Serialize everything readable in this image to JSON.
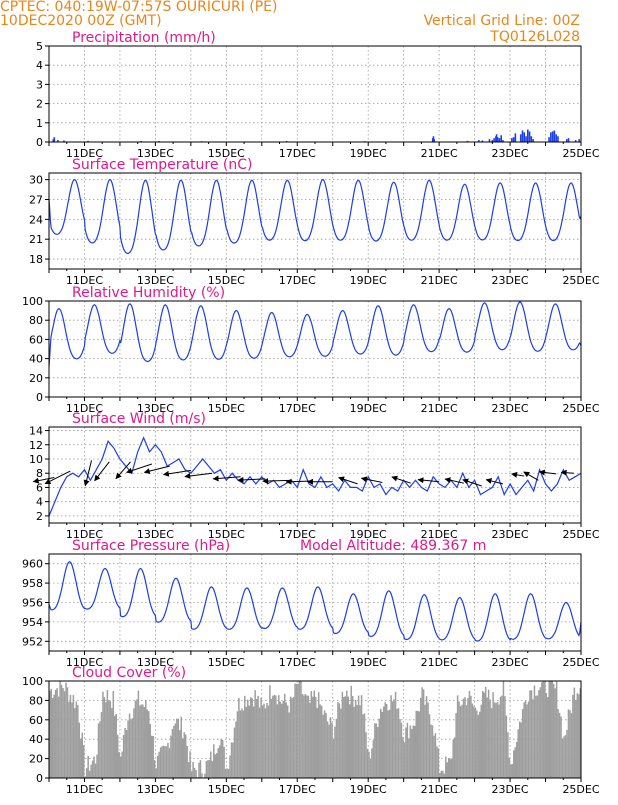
{
  "header": {
    "station": "CPTEC:   040:19W-07:57S   OURICURI (PE)",
    "date": "10DEC2020 00Z (GMT)",
    "grid_note": "Vertical Grid Line: 00Z",
    "model_code": "TQ0126L028"
  },
  "colors": {
    "header": "#e8861a",
    "titles": "#e0198c",
    "series": "#1c3fe6",
    "cloud": "#9e9e9e",
    "arrow": "#000000"
  },
  "x_axis": {
    "start_day": 10,
    "end_day": 25,
    "tick_labels": [
      "11DEC",
      "13DEC",
      "15DEC",
      "17DEC",
      "19DEC",
      "21DEC",
      "23DEC",
      "25DEC"
    ],
    "tick_days": [
      11,
      13,
      15,
      17,
      19,
      21,
      23,
      25
    ],
    "grid_days": [
      11,
      12,
      13,
      14,
      15,
      16,
      17,
      18,
      19,
      20,
      21,
      22,
      23,
      24
    ]
  },
  "chart_data": [
    {
      "type": "bar",
      "title": "Precipitation (mm/h)",
      "ylim": [
        0,
        5
      ],
      "yticks": [
        0,
        1,
        2,
        3,
        4,
        5
      ],
      "x": [
        10.12,
        10.15,
        10.25,
        10.42,
        11.1,
        12.6,
        13.1,
        14.3,
        16.7,
        18.9,
        20.82,
        20.84,
        20.86,
        21.8,
        22.12,
        22.22,
        22.42,
        22.5,
        22.55,
        22.6,
        22.62,
        22.65,
        22.7,
        22.75,
        22.8,
        23.05,
        23.1,
        23.15,
        23.3,
        23.35,
        23.4,
        23.45,
        23.5,
        23.55,
        23.6,
        23.65,
        24.1,
        24.15,
        24.2,
        24.25,
        24.3,
        24.35,
        24.6,
        24.65,
        24.85,
        24.95
      ],
      "values": [
        0.15,
        0.25,
        0.1,
        0.08,
        0.06,
        0.05,
        0.05,
        0.04,
        0.05,
        0.04,
        0.2,
        0.3,
        0.15,
        0.06,
        0.1,
        0.08,
        0.15,
        0.1,
        0.2,
        0.3,
        0.4,
        0.25,
        0.2,
        0.35,
        0.1,
        0.2,
        0.25,
        0.45,
        0.4,
        0.6,
        0.5,
        0.3,
        0.65,
        0.55,
        0.3,
        0.15,
        0.25,
        0.5,
        0.55,
        0.6,
        0.4,
        0.3,
        0.15,
        0.2,
        0.1,
        0.15
      ]
    },
    {
      "type": "line",
      "title": "Surface Temperature (nC)",
      "ylim": [
        16.5,
        31
      ],
      "yticks": [
        18,
        21,
        24,
        27,
        30
      ],
      "daily_max": [
        30,
        30,
        29.9,
        29.9,
        29.9,
        29.9,
        29.9,
        30,
        29.9,
        29.6,
        29.9,
        29.3,
        29.5,
        29.5,
        29.5
      ],
      "daily_min": [
        20.5,
        19,
        17.2,
        17.8,
        18.5,
        19,
        19.5,
        19.4,
        19.5,
        19.4,
        19.5,
        19.6,
        19.6,
        19.5,
        19.5
      ],
      "start_value": 27,
      "end_value": 24.5
    },
    {
      "type": "line",
      "title": "Relative Humidity (%)",
      "ylim": [
        0,
        100
      ],
      "yticks": [
        0,
        20,
        40,
        60,
        80,
        100
      ],
      "daily_max": [
        92,
        96,
        97,
        96,
        95,
        90,
        88,
        86,
        90,
        95,
        96,
        92,
        98,
        99,
        97
      ],
      "daily_min": [
        32,
        38,
        28,
        30,
        31,
        33,
        35,
        36,
        38,
        36,
        40,
        40,
        42,
        40,
        42
      ],
      "start_value": 32,
      "end_value": 53
    },
    {
      "type": "line",
      "title": "Surface Wind (m/s)",
      "ylim": [
        1,
        14.5
      ],
      "yticks": [
        2,
        4,
        6,
        8,
        10,
        12,
        14
      ],
      "values": [
        2,
        4,
        6,
        7.5,
        8,
        7.5,
        8.5,
        7,
        8.5,
        10,
        12.5,
        11.5,
        10,
        9,
        8,
        11,
        13,
        11,
        12,
        11,
        9,
        9.5,
        10,
        8.5,
        8,
        9,
        10,
        9,
        8,
        8.5,
        7,
        8,
        7,
        6.5,
        7.5,
        6.5,
        7.5,
        6.5,
        7,
        6,
        6.5,
        7,
        6,
        8.5,
        6.5,
        6,
        7.5,
        6,
        6.5,
        5.5,
        7,
        6,
        6,
        5.5,
        7.5,
        6,
        6.5,
        5,
        6,
        5.5,
        7,
        6,
        7,
        6,
        5.5,
        7.5,
        6.5,
        6,
        7,
        6,
        8,
        6,
        7,
        5,
        5.5,
        6,
        7.5,
        5,
        6.5,
        5,
        6,
        7,
        5.5,
        8.5,
        6.5,
        5.5,
        6.5,
        8.5,
        7,
        7.5,
        8
      ],
      "arrows": [
        {
          "day": 10.15,
          "u": 0.5,
          "v": -0.1,
          "y": 7.4
        },
        {
          "day": 10.6,
          "u": 0.6,
          "v": -0.3,
          "y": 8.3
        },
        {
          "day": 11.2,
          "u": 0.15,
          "v": -0.6,
          "y": 9.8
        },
        {
          "day": 11.7,
          "u": 0.35,
          "v": -0.45,
          "y": 9.6
        },
        {
          "day": 12.3,
          "u": 0.35,
          "v": -0.4,
          "y": 9.6
        },
        {
          "day": 12.9,
          "u": 0.6,
          "v": -0.2,
          "y": 9.3
        },
        {
          "day": 13.4,
          "u": 0.6,
          "v": -0.15,
          "y": 9.0
        },
        {
          "day": 14.0,
          "u": 0.65,
          "v": -0.1,
          "y": 8.4
        },
        {
          "day": 14.6,
          "u": 0.65,
          "v": -0.08,
          "y": 8.0
        },
        {
          "day": 15.4,
          "u": 0.65,
          "v": -0.05,
          "y": 7.5
        },
        {
          "day": 16.1,
          "u": 0.65,
          "v": -0.03,
          "y": 7.2
        },
        {
          "day": 16.8,
          "u": 0.65,
          "v": -0.02,
          "y": 7.0
        },
        {
          "day": 17.4,
          "u": 0.6,
          "v": -0.02,
          "y": 6.9
        },
        {
          "day": 18.0,
          "u": 0.6,
          "v": 0.0,
          "y": 6.8
        },
        {
          "day": 18.7,
          "u": 0.45,
          "v": 0.15,
          "y": 6.5
        },
        {
          "day": 19.4,
          "u": 0.5,
          "v": 0.1,
          "y": 6.7
        },
        {
          "day": 20.2,
          "u": 0.45,
          "v": 0.15,
          "y": 6.6
        },
        {
          "day": 21.0,
          "u": 0.5,
          "v": 0.05,
          "y": 6.8
        },
        {
          "day": 21.7,
          "u": 0.45,
          "v": 0.1,
          "y": 6.6
        },
        {
          "day": 22.2,
          "u": 0.45,
          "v": 0.15,
          "y": 6.2
        },
        {
          "day": 22.8,
          "u": 0.4,
          "v": 0.1,
          "y": 6.5
        },
        {
          "day": 23.4,
          "u": 0.3,
          "v": 0.05,
          "y": 7.6
        },
        {
          "day": 23.8,
          "u": 0.35,
          "v": 0.2,
          "y": 7.0
        },
        {
          "day": 24.3,
          "u": 0.4,
          "v": 0.05,
          "y": 7.9
        },
        {
          "day": 24.8,
          "u": 0.3,
          "v": 0.02,
          "y": 8.0
        }
      ]
    },
    {
      "type": "line",
      "title": "Surface Pressure (hPa)",
      "subtitle": "Model Altitude: 489.367 m",
      "ylim": [
        951,
        961
      ],
      "yticks": [
        952,
        954,
        956,
        958,
        960
      ],
      "daily_max": [
        960.2,
        959.5,
        959.5,
        958.5,
        957.6,
        957.5,
        957.5,
        957.6,
        956.9,
        957.2,
        956.8,
        956.5,
        956.9,
        956.9,
        956.0
      ],
      "daily_min": [
        954.5,
        954.7,
        953.8,
        953.3,
        952.6,
        952.6,
        952.7,
        952.6,
        952.2,
        951.8,
        951.5,
        951.5,
        951.3,
        951.5,
        951.7
      ],
      "start_value": 955.8,
      "end_value": 954
    },
    {
      "type": "bar",
      "title": "Cloud Cover (%)",
      "ylim": [
        0,
        100
      ],
      "yticks": [
        0,
        20,
        40,
        60,
        80,
        100
      ],
      "profile_days": [
        10.0,
        10.4,
        10.8,
        11.0,
        11.3,
        11.5,
        11.8,
        12.0,
        12.2,
        12.5,
        12.8,
        13.0,
        13.3,
        13.5,
        13.8,
        14.0,
        14.3,
        14.5,
        14.8,
        15.0,
        15.3,
        15.5,
        15.8,
        16.0,
        16.3,
        16.5,
        16.8,
        17.0,
        17.3,
        17.5,
        17.8,
        18.0,
        18.3,
        18.5,
        18.8,
        19.0,
        19.3,
        19.5,
        19.8,
        20.0,
        20.3,
        20.5,
        20.8,
        21.0,
        21.3,
        21.5,
        21.8,
        22.0,
        22.3,
        22.5,
        22.8,
        23.0,
        23.3,
        23.5,
        23.8,
        24.0,
        24.3,
        24.5,
        24.8,
        25.0
      ],
      "profile_values": [
        90,
        95,
        75,
        10,
        20,
        88,
        80,
        20,
        65,
        80,
        70,
        15,
        30,
        60,
        50,
        8,
        10,
        15,
        45,
        10,
        75,
        82,
        85,
        70,
        95,
        80,
        75,
        98,
        75,
        85,
        60,
        50,
        92,
        85,
        80,
        20,
        70,
        80,
        80,
        45,
        60,
        85,
        60,
        10,
        15,
        75,
        85,
        70,
        85,
        80,
        90,
        15,
        65,
        90,
        95,
        95,
        90,
        40,
        90,
        98
      ]
    }
  ]
}
